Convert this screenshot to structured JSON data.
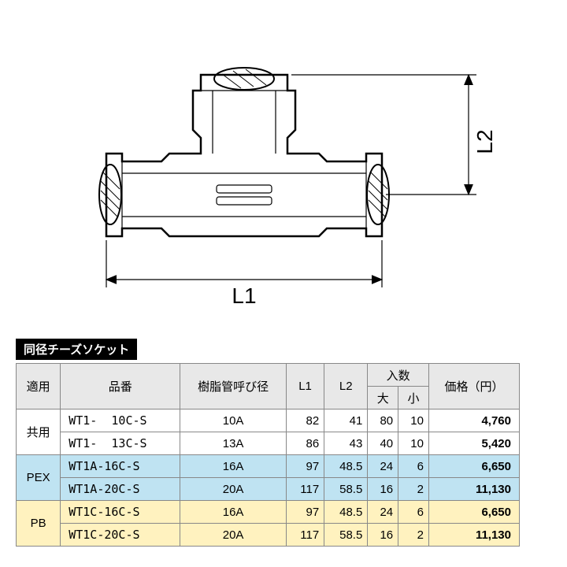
{
  "diagram": {
    "labels": {
      "L1": "L1",
      "L2": "L2"
    },
    "colors": {
      "stroke": "#000000",
      "fill": "#ffffff",
      "hatch": "#000000",
      "dim": "#000000"
    },
    "stroke_width": {
      "outline": 2.5,
      "dim": 1.2,
      "hatch": 1.0
    }
  },
  "title": "同径チーズソケット",
  "table": {
    "headers": {
      "apply": "適用",
      "partno": "品番",
      "pipe": "樹脂管呼び径",
      "L1": "L1",
      "L2": "L2",
      "qty": "入数",
      "qty_big": "大",
      "qty_small": "小",
      "price": "価格（円）"
    },
    "groups": [
      {
        "apply": "共用",
        "row_class": "row-white",
        "rows": [
          {
            "partno": "WT1-  10C-S",
            "pipe": "10A",
            "L1": "82",
            "L2": "41",
            "big": "80",
            "small": "10",
            "price": "4,760"
          },
          {
            "partno": "WT1-  13C-S",
            "pipe": "13A",
            "L1": "86",
            "L2": "43",
            "big": "40",
            "small": "10",
            "price": "5,420"
          }
        ]
      },
      {
        "apply": "PEX",
        "row_class": "row-blue",
        "rows": [
          {
            "partno": "WT1A-16C-S",
            "pipe": "16A",
            "L1": "97",
            "L2": "48.5",
            "big": "24",
            "small": "6",
            "price": "6,650"
          },
          {
            "partno": "WT1A-20C-S",
            "pipe": "20A",
            "L1": "117",
            "L2": "58.5",
            "big": "16",
            "small": "2",
            "price": "11,130"
          }
        ]
      },
      {
        "apply": "PB",
        "row_class": "row-yellow",
        "rows": [
          {
            "partno": "WT1C-16C-S",
            "pipe": "16A",
            "L1": "97",
            "L2": "48.5",
            "big": "24",
            "small": "6",
            "price": "6,650"
          },
          {
            "partno": "WT1C-20C-S",
            "pipe": "20A",
            "L1": "117",
            "L2": "58.5",
            "big": "16",
            "small": "2",
            "price": "11,130"
          }
        ]
      }
    ]
  }
}
